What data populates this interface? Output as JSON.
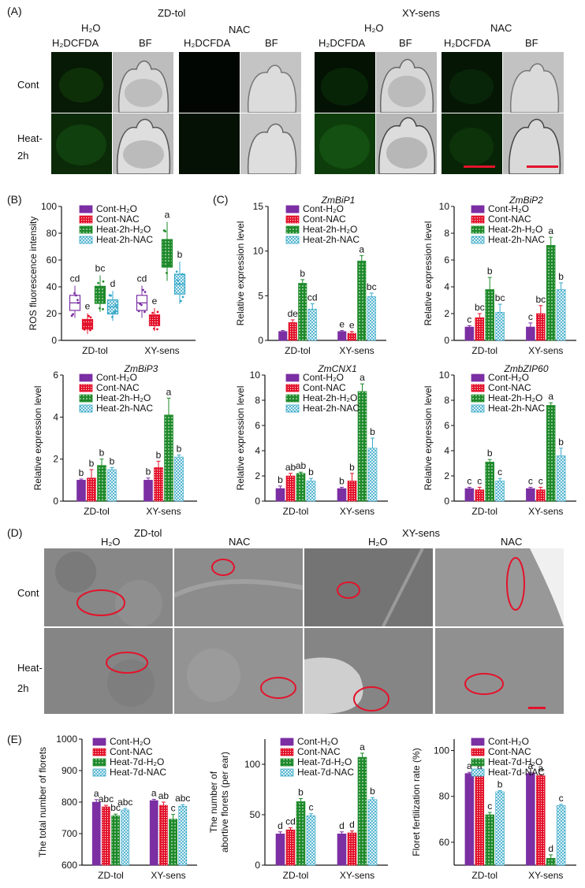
{
  "colors": {
    "h2o": "#7b2fa3",
    "nac": "#e3132b",
    "heat_h2o": "#1e8a2a",
    "heat_nac": "#35a8c8",
    "scale": "#e3132b",
    "circle": "#e3132b",
    "hatch": "#ffffff"
  },
  "panel_a": {
    "letter": "(A)",
    "groups": [
      "ZD-tol",
      "XY-sens"
    ],
    "treatments": [
      "H₂O",
      "NAC"
    ],
    "channels": [
      "H₂DCFDA",
      "BF"
    ],
    "rows": [
      "Cont",
      "Heat-",
      "2h"
    ]
  },
  "panel_b": {
    "letter": "(B)"
  },
  "panel_c": {
    "letter": "(C)"
  },
  "panel_d": {
    "letter": "(D)",
    "groups": [
      "ZD-tol",
      "XY-sens"
    ],
    "treatments": [
      "H₂O",
      "NAC",
      "H₂O",
      "NAC"
    ],
    "rows": [
      "Cont",
      "Heat-",
      "2h"
    ]
  },
  "panel_e": {
    "letter": "(E)"
  },
  "chart_data": [
    {
      "id": "B",
      "type": "box",
      "ylabel": "ROS fluorescence intensity",
      "ylim": [
        0,
        100
      ],
      "yticks": [
        0,
        20,
        40,
        60,
        80,
        100
      ],
      "categories": [
        "ZD-tol",
        "XY-sens"
      ],
      "series": [
        {
          "name": "Cont-H₂O",
          "values": [
            28,
            28
          ],
          "letters": [
            "cd",
            "cd"
          ]
        },
        {
          "name": "Cont-NAC",
          "values": [
            12,
            15
          ],
          "letters": [
            "e",
            "e"
          ]
        },
        {
          "name": "Heat-2h-H₂O",
          "values": [
            34,
            65
          ],
          "letters": [
            "bc",
            "a"
          ]
        },
        {
          "name": "Heat-2h-NAC",
          "values": [
            25,
            42
          ],
          "letters": [
            "d",
            "b"
          ]
        }
      ]
    },
    {
      "id": "C1",
      "type": "bar",
      "title": "ZmBiP1",
      "ylabel": "Relative expression level",
      "ylim": [
        0,
        15
      ],
      "yticks": [
        0,
        5,
        10,
        15
      ],
      "categories": [
        "ZD-tol",
        "XY-sens"
      ],
      "series": [
        {
          "name": "Cont-H₂O",
          "values": [
            1.0,
            1.0
          ],
          "err": [
            0.1,
            0.1
          ],
          "letters": [
            "",
            ""
          ]
        },
        {
          "name": "Cont-NAC",
          "values": [
            2.0,
            0.8
          ],
          "err": [
            0.3,
            0.2
          ],
          "letters": [
            "de",
            "e"
          ]
        },
        {
          "name": "Heat-2h-H₂O",
          "values": [
            6.4,
            8.9
          ],
          "err": [
            0.4,
            0.6
          ],
          "letters": [
            "b",
            "a"
          ]
        },
        {
          "name": "Heat-2h-NAC",
          "values": [
            3.5,
            4.9
          ],
          "err": [
            0.6,
            0.4
          ],
          "letters": [
            "cd",
            "bc"
          ]
        }
      ],
      "extra_letters": [
        {
          "text": "e",
          "series": 0,
          "cat": 1
        }
      ]
    },
    {
      "id": "C2",
      "type": "bar",
      "title": "ZmBiP2",
      "ylabel": "Relative expression level",
      "ylim": [
        0,
        10
      ],
      "yticks": [
        0,
        2,
        4,
        6,
        8,
        10
      ],
      "categories": [
        "ZD-tol",
        "XY-sens"
      ],
      "series": [
        {
          "name": "Cont-H₂O",
          "values": [
            1.0,
            1.0
          ],
          "err": [
            0.1,
            0.3
          ],
          "letters": [
            "c",
            "c"
          ]
        },
        {
          "name": "Cont-NAC",
          "values": [
            1.7,
            2.0
          ],
          "err": [
            0.3,
            0.6
          ],
          "letters": [
            "bc",
            "bc"
          ]
        },
        {
          "name": "Heat-2h-H₂O",
          "values": [
            3.8,
            7.1
          ],
          "err": [
            0.9,
            0.6
          ],
          "letters": [
            "b",
            "a"
          ]
        },
        {
          "name": "Heat-2h-NAC",
          "values": [
            2.1,
            3.8
          ],
          "err": [
            0.6,
            0.5
          ],
          "letters": [
            "bc",
            "b"
          ]
        }
      ]
    },
    {
      "id": "C3",
      "type": "bar",
      "title": "ZmBiP3",
      "ylabel": "Relative expression level",
      "ylim": [
        0,
        6
      ],
      "yticks": [
        0,
        2,
        4,
        6
      ],
      "categories": [
        "ZD-tol",
        "XY-sens"
      ],
      "series": [
        {
          "name": "Cont-H₂O",
          "values": [
            1.0,
            1.0
          ],
          "err": [
            0.05,
            0.1
          ],
          "letters": [
            "b",
            "b"
          ]
        },
        {
          "name": "Cont-NAC",
          "values": [
            1.1,
            1.6
          ],
          "err": [
            0.4,
            0.3
          ],
          "letters": [
            "b",
            "b"
          ]
        },
        {
          "name": "Heat-2h-H₂O",
          "values": [
            1.7,
            4.1
          ],
          "err": [
            0.3,
            0.8
          ],
          "letters": [
            "b",
            "a"
          ]
        },
        {
          "name": "Heat-2h-NAC",
          "values": [
            1.5,
            2.1
          ],
          "err": [
            0.1,
            0.1
          ],
          "letters": [
            "b",
            "b"
          ]
        }
      ]
    },
    {
      "id": "C4",
      "type": "bar",
      "title": "ZmCNX1",
      "ylabel": "Relative expression level",
      "ylim": [
        0,
        10
      ],
      "yticks": [
        0,
        2,
        4,
        6,
        8,
        10
      ],
      "categories": [
        "ZD-tol",
        "XY-sens"
      ],
      "series": [
        {
          "name": "Cont-H₂O",
          "values": [
            1.0,
            1.0
          ],
          "err": [
            0.2,
            0.1
          ],
          "letters": [
            "b",
            "b"
          ]
        },
        {
          "name": "Cont-NAC",
          "values": [
            2.0,
            1.6
          ],
          "err": [
            0.2,
            0.6
          ],
          "letters": [
            "ab",
            "b"
          ]
        },
        {
          "name": "Heat-2h-H₂O",
          "values": [
            2.2,
            8.7
          ],
          "err": [
            0.1,
            0.6
          ],
          "letters": [
            "ab",
            "a"
          ]
        },
        {
          "name": "Heat-2h-NAC",
          "values": [
            1.6,
            4.2
          ],
          "err": [
            0.2,
            0.8
          ],
          "letters": [
            "b",
            "b"
          ]
        }
      ]
    },
    {
      "id": "C5",
      "type": "bar",
      "title": "ZmbZIP60",
      "ylabel": "Relative expression level",
      "ylim": [
        0,
        10
      ],
      "yticks": [
        0,
        2,
        4,
        6,
        8,
        10
      ],
      "categories": [
        "ZD-tol",
        "XY-sens"
      ],
      "series": [
        {
          "name": "Cont-H₂O",
          "values": [
            1.0,
            1.0
          ],
          "err": [
            0.1,
            0.1
          ],
          "letters": [
            "c",
            "c"
          ]
        },
        {
          "name": "Cont-NAC",
          "values": [
            0.9,
            0.9
          ],
          "err": [
            0.2,
            0.2
          ],
          "letters": [
            "c",
            "c"
          ]
        },
        {
          "name": "Heat-2h-H₂O",
          "values": [
            3.1,
            7.6
          ],
          "err": [
            0.2,
            0.2
          ],
          "letters": [
            "b",
            "a"
          ]
        },
        {
          "name": "Heat-2h-NAC",
          "values": [
            1.6,
            3.6
          ],
          "err": [
            0.2,
            0.6
          ],
          "letters": [
            "c",
            "b"
          ]
        }
      ]
    },
    {
      "id": "E1",
      "type": "bar",
      "ylabel": "The total number of florets",
      "ylim": [
        600,
        1000
      ],
      "yticks": [
        600,
        700,
        800,
        900,
        1000
      ],
      "categories": [
        "ZD-tol",
        "XY-sens"
      ],
      "series": [
        {
          "name": "Cont-H₂O",
          "values": [
            800,
            805
          ],
          "err": [
            8,
            4
          ],
          "letters": [
            "a",
            "a"
          ]
        },
        {
          "name": "Cont-NAC",
          "values": [
            785,
            790
          ],
          "err": [
            5,
            10
          ],
          "letters": [
            "abc",
            "ab"
          ]
        },
        {
          "name": "Heat-7d-H₂O",
          "values": [
            757,
            746
          ],
          "err": [
            5,
            15
          ],
          "letters": [
            "bc",
            "c"
          ]
        },
        {
          "name": "Heat-7d-NAC",
          "values": [
            775,
            787
          ],
          "err": [
            5,
            5
          ],
          "letters": [
            "abc",
            "abc"
          ]
        }
      ]
    },
    {
      "id": "E2",
      "type": "bar",
      "ylabel": "The number of abortive florets (per ear)",
      "ylim": [
        0,
        125
      ],
      "yticks": [
        0,
        50,
        100
      ],
      "categories": [
        "ZD-tol",
        "XY-sens"
      ],
      "series": [
        {
          "name": "Cont-H₂O",
          "values": [
            31,
            31
          ],
          "err": [
            2,
            2
          ],
          "letters": [
            "d",
            "d"
          ]
        },
        {
          "name": "Cont-NAC",
          "values": [
            35,
            32
          ],
          "err": [
            2,
            2
          ],
          "letters": [
            "cd",
            "d"
          ]
        },
        {
          "name": "Heat-7d-H₂O",
          "values": [
            63,
            107
          ],
          "err": [
            3,
            4
          ],
          "letters": [
            "b",
            "a"
          ]
        },
        {
          "name": "Heat-7d-NAC",
          "values": [
            49,
            65
          ],
          "err": [
            2,
            2
          ],
          "letters": [
            "c",
            "b"
          ]
        }
      ]
    },
    {
      "id": "E3",
      "type": "bar",
      "ylabel": "Floret fertilization rate (%)",
      "ylim": [
        50,
        105
      ],
      "yticks": [
        60,
        80,
        100
      ],
      "categories": [
        "ZD-tol",
        "XY-sens"
      ],
      "series": [
        {
          "name": "Cont-H₂O",
          "values": [
            90,
            90
          ],
          "err": [
            0.5,
            0.5
          ],
          "letters": [
            "a",
            "a"
          ]
        },
        {
          "name": "Cont-NAC",
          "values": [
            90,
            89
          ],
          "err": [
            0.5,
            0.5
          ],
          "letters": [
            "a",
            "a"
          ]
        },
        {
          "name": "Heat-7d-H₂O",
          "values": [
            72,
            53
          ],
          "err": [
            1,
            1.5
          ],
          "letters": [
            "c",
            "d"
          ]
        },
        {
          "name": "Heat-7d-NAC",
          "values": [
            82,
            76
          ],
          "err": [
            0.5,
            0.5
          ],
          "letters": [
            "b",
            "c"
          ]
        }
      ]
    }
  ]
}
